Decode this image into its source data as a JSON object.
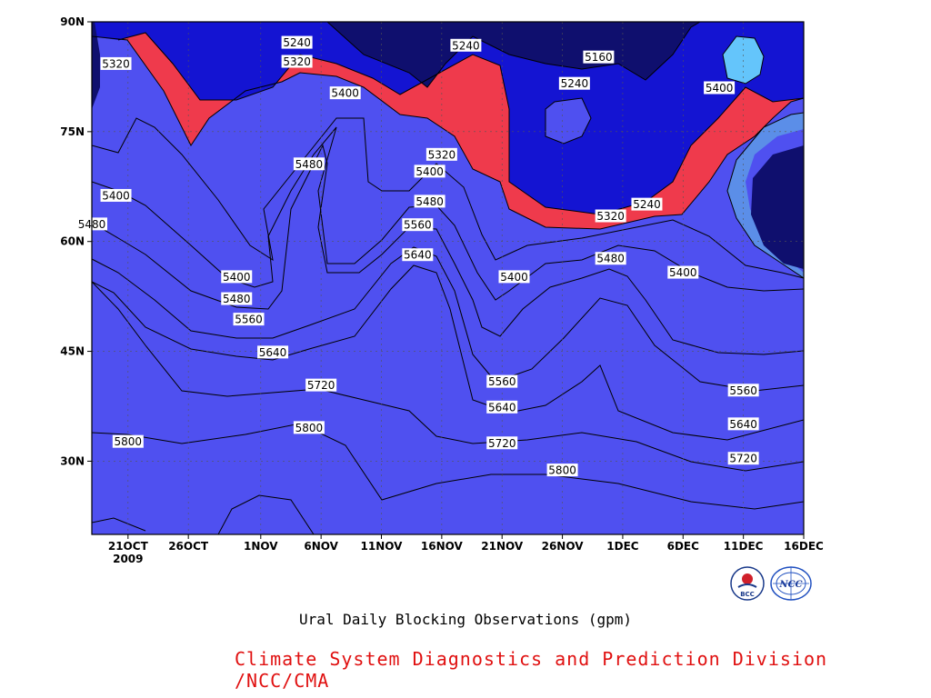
{
  "chart_data": {
    "type": "heatmap",
    "title": "Ural Daily Blocking Observations (gpm)",
    "xlabel": "",
    "ylabel": "",
    "x_ticks": [
      "21OCT",
      "26OCT",
      "1NOV",
      "6NOV",
      "11NOV",
      "16NOV",
      "21NOV",
      "26NOV",
      "1DEC",
      "6DEC",
      "11DEC",
      "16DEC"
    ],
    "x_year_label": "2009",
    "y_ticks": [
      "30N",
      "45N",
      "60N",
      "75N",
      "90N"
    ],
    "ylim_degN": [
      20,
      90
    ],
    "x_range": [
      "18OCT2009",
      "16DEC2009"
    ],
    "grid": true,
    "contour_levels": [
      5160,
      5240,
      5320,
      5400,
      5480,
      5560,
      5640,
      5720,
      5800,
      5880
    ],
    "fill_colors": [
      "#0f0f6e",
      "#1414d2",
      "#4f50f0",
      "#5b8ee8",
      "#64c5fb",
      "#fafa70",
      "#fbe1a0",
      "#fba86a",
      "#fb7142",
      "#f3717a",
      "#ef3a4c"
    ],
    "contour_labels": [
      {
        "value": 5240,
        "date": "04NOV",
        "lat": 87.2
      },
      {
        "value": 5240,
        "date": "18NOV",
        "lat": 86.8
      },
      {
        "value": 5160,
        "date": "29NOV",
        "lat": 85.2
      },
      {
        "value": 5320,
        "date": "20OCT",
        "lat": 84.3
      },
      {
        "value": 5320,
        "date": "04NOV",
        "lat": 84.6
      },
      {
        "value": 5240,
        "date": "27NOV",
        "lat": 81.6
      },
      {
        "value": 5400,
        "date": "09DEC",
        "lat": 81.0
      },
      {
        "value": 5400,
        "date": "08NOV",
        "lat": 80.3
      },
      {
        "value": 5320,
        "date": "16NOV",
        "lat": 71.9
      },
      {
        "value": 5480,
        "date": "05NOV",
        "lat": 70.6
      },
      {
        "value": 5400,
        "date": "15NOV",
        "lat": 69.6
      },
      {
        "value": 5400,
        "date": "20OCT",
        "lat": 66.3
      },
      {
        "value": 5480,
        "date": "15NOV",
        "lat": 65.5
      },
      {
        "value": 5240,
        "date": "03DEC",
        "lat": 65.1
      },
      {
        "value": 5480,
        "date": "18OCT",
        "lat": 62.4
      },
      {
        "value": 5320,
        "date": "30NOV",
        "lat": 63.5
      },
      {
        "value": 5560,
        "date": "14NOV",
        "lat": 62.3
      },
      {
        "value": 5640,
        "date": "14NOV",
        "lat": 58.2
      },
      {
        "value": 5480,
        "date": "30NOV",
        "lat": 57.7
      },
      {
        "value": 5400,
        "date": "06DEC",
        "lat": 55.8
      },
      {
        "value": 5400,
        "date": "30OCT",
        "lat": 55.2
      },
      {
        "value": 5400,
        "date": "22NOV",
        "lat": 55.2
      },
      {
        "value": 5480,
        "date": "30OCT",
        "lat": 52.2
      },
      {
        "value": 5560,
        "date": "31OCT",
        "lat": 49.4
      },
      {
        "value": 5640,
        "date": "02NOV",
        "lat": 44.9
      },
      {
        "value": 5720,
        "date": "06NOV",
        "lat": 40.4
      },
      {
        "value": 5560,
        "date": "21NOV",
        "lat": 40.9
      },
      {
        "value": 5560,
        "date": "11DEC",
        "lat": 39.7
      },
      {
        "value": 5640,
        "date": "21NOV",
        "lat": 37.4
      },
      {
        "value": 5640,
        "date": "11DEC",
        "lat": 35.1
      },
      {
        "value": 5800,
        "date": "21OCT",
        "lat": 32.7
      },
      {
        "value": 5800,
        "date": "05NOV",
        "lat": 34.6
      },
      {
        "value": 5720,
        "date": "21NOV",
        "lat": 32.5
      },
      {
        "value": 5720,
        "date": "11DEC",
        "lat": 30.4
      },
      {
        "value": 5800,
        "date": "26NOV",
        "lat": 28.8
      }
    ]
  },
  "credit": "Climate System Diagnostics and Prediction Division /NCC/CMA",
  "logos": [
    "BCC",
    "NCC"
  ]
}
